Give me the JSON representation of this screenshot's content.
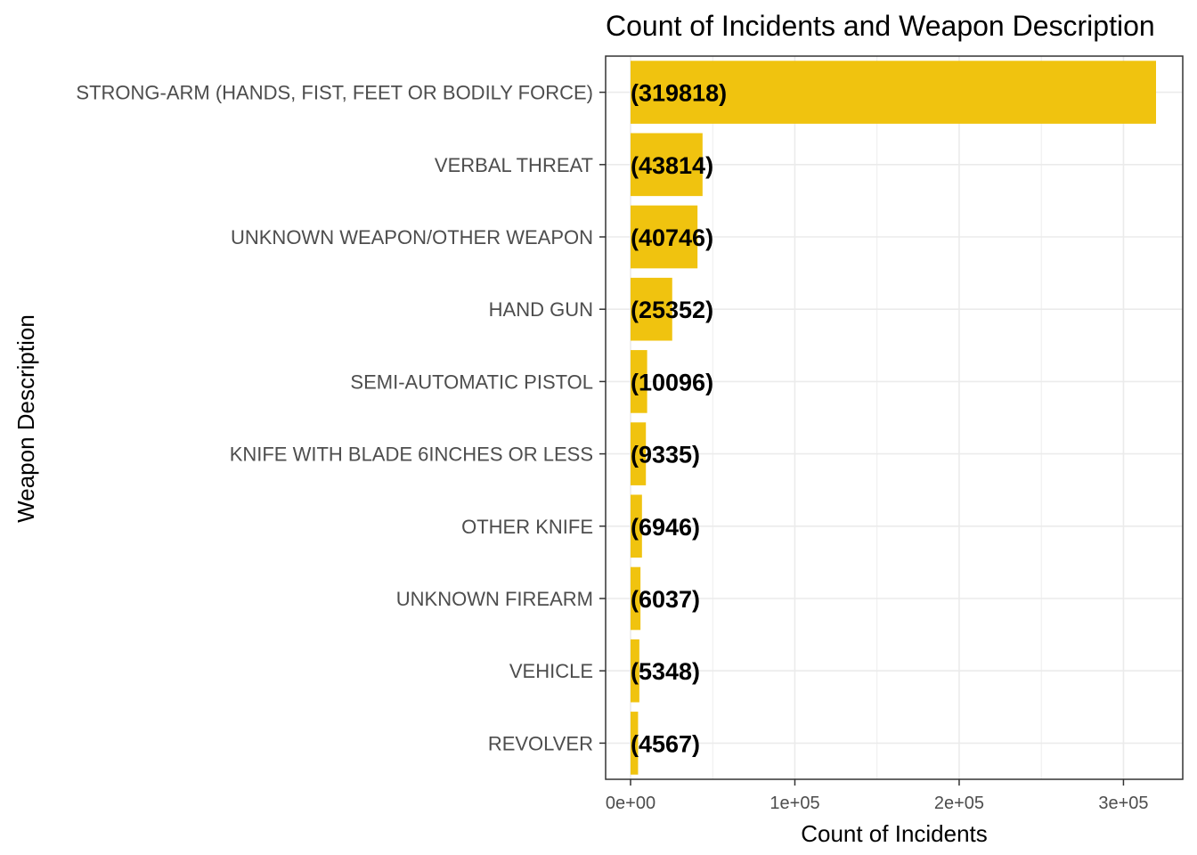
{
  "chart_data": {
    "type": "bar",
    "orientation": "horizontal",
    "title": "Count of Incidents and Weapon Description",
    "xlabel": "Count of Incidents",
    "ylabel": "Weapon Description",
    "categories": [
      "STRONG-ARM (HANDS, FIST, FEET OR BODILY FORCE)",
      "VERBAL THREAT",
      "UNKNOWN WEAPON/OTHER WEAPON",
      "HAND GUN",
      "SEMI-AUTOMATIC PISTOL",
      "KNIFE WITH BLADE 6INCHES OR LESS",
      "OTHER KNIFE",
      "UNKNOWN FIREARM",
      "VEHICLE",
      "REVOLVER"
    ],
    "values": [
      319818,
      43814,
      40746,
      25352,
      10096,
      9335,
      6946,
      6037,
      5348,
      4567
    ],
    "data_labels": [
      "(319818)",
      "(43814)",
      "(40746)",
      "(25352)",
      "(10096)",
      "(9335)",
      "(6946)",
      "(6037)",
      "(5348)",
      "(4567)"
    ],
    "x_ticks": [
      0,
      100000,
      200000,
      300000
    ],
    "x_tick_labels": [
      "0e+00",
      "1e+05",
      "2e+05",
      "3e+05"
    ],
    "xlim": [
      0,
      335809
    ],
    "grid": true,
    "bar_color": "#F0C30F",
    "grid_color": "#EBEBEB",
    "panel_border_color": "#333333"
  }
}
